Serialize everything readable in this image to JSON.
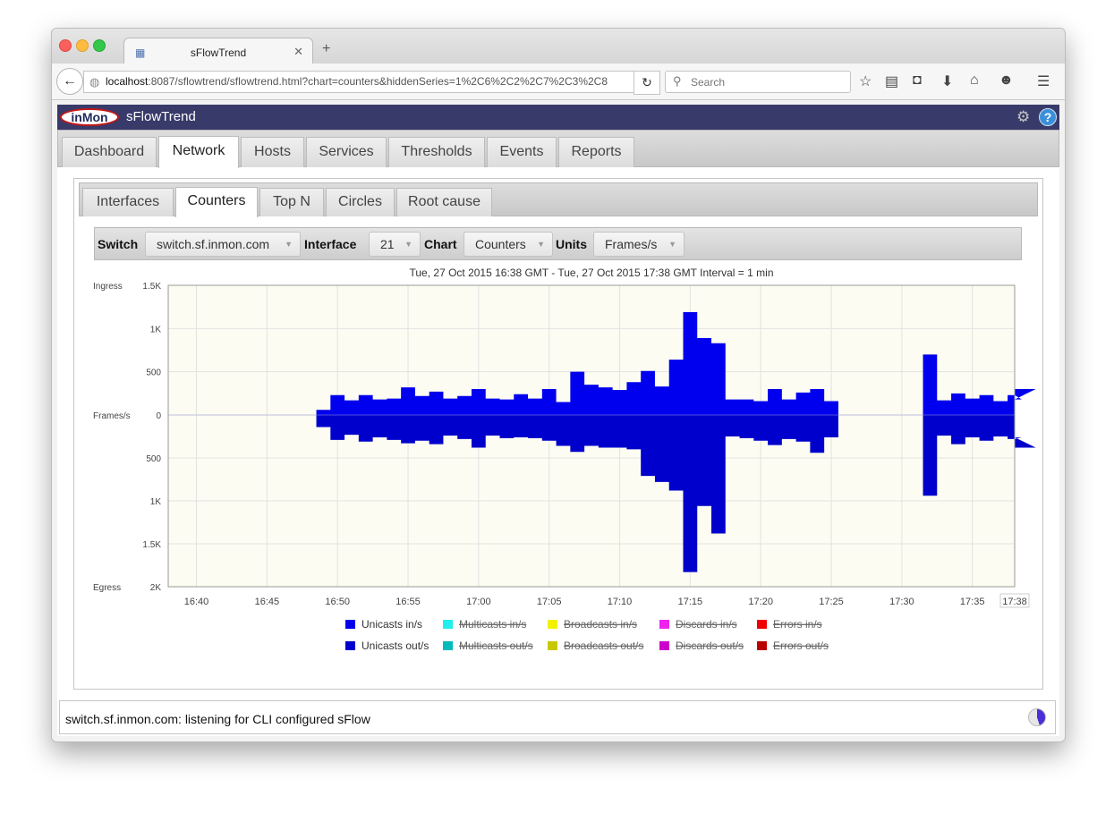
{
  "browser": {
    "tab_title": "sFlowTrend",
    "url_host": "localhost",
    "url_rest": ":8087/sflowtrend/sflowtrend.html?chart=counters&hiddenSeries=1%2C6%2C2%2C7%2C3%2C8",
    "search_placeholder": "Search"
  },
  "app": {
    "logo_text": "inMon",
    "title": "sFlowTrend"
  },
  "main_tabs": [
    "Dashboard",
    "Network",
    "Hosts",
    "Services",
    "Thresholds",
    "Events",
    "Reports"
  ],
  "main_tab_active": "Network",
  "sub_tabs": [
    "Interfaces",
    "Counters",
    "Top N",
    "Circles",
    "Root cause"
  ],
  "sub_tab_active": "Counters",
  "controls": {
    "switch_label": "Switch",
    "switch_value": "switch.sf.inmon.com",
    "interface_label": "Interface",
    "interface_value": "21",
    "chart_label": "Chart",
    "chart_value": "Counters",
    "units_label": "Units",
    "units_value": "Frames/s"
  },
  "chart_data": {
    "type": "area",
    "title": "Tue, 27 Oct 2015 16:38 GMT - Tue, 27 Oct 2015 17:38 GMT Interval = 1 min",
    "ylabel": "Frames/s",
    "ylabel_top": "Ingress",
    "ylabel_bottom": "Egress",
    "ylim_in": [
      0,
      1500
    ],
    "ylim_out": [
      0,
      2000
    ],
    "y_ticks_in": [
      {
        "v": 1500,
        "label": "1.5K"
      },
      {
        "v": 1000,
        "label": "1K"
      },
      {
        "v": 500,
        "label": "500"
      },
      {
        "v": 0,
        "label": "0"
      }
    ],
    "y_ticks_out": [
      {
        "v": 500,
        "label": "500"
      },
      {
        "v": 1000,
        "label": "1K"
      },
      {
        "v": 1500,
        "label": "1.5K"
      },
      {
        "v": 2000,
        "label": "2K"
      }
    ],
    "x_ticks": [
      "16:40",
      "16:45",
      "16:50",
      "16:55",
      "17:00",
      "17:05",
      "17:10",
      "17:15",
      "17:20",
      "17:25",
      "17:30",
      "17:35",
      "17:38"
    ],
    "x_tick_minutes": [
      2,
      7,
      12,
      17,
      22,
      27,
      32,
      37,
      42,
      47,
      52,
      57,
      60
    ],
    "x_start": "16:38",
    "series": [
      {
        "name": "Unicasts in/s",
        "color": "#0000ee",
        "visible": true,
        "values": [
          null,
          null,
          null,
          null,
          null,
          null,
          null,
          null,
          null,
          null,
          null,
          60,
          230,
          170,
          230,
          180,
          190,
          320,
          220,
          270,
          190,
          220,
          300,
          190,
          180,
          240,
          190,
          300,
          150,
          500,
          350,
          320,
          290,
          380,
          510,
          330,
          640,
          1190,
          890,
          830,
          180,
          180,
          160,
          300,
          180,
          260,
          300,
          160,
          null,
          null,
          null,
          null,
          null,
          null,
          700,
          170,
          250,
          190,
          230,
          160,
          230,
          180,
          300
        ]
      },
      {
        "name": "Unicasts out/s",
        "color": "#0000cc",
        "visible": true,
        "values": [
          null,
          null,
          null,
          null,
          null,
          null,
          null,
          null,
          null,
          null,
          null,
          140,
          290,
          230,
          310,
          260,
          290,
          330,
          300,
          340,
          240,
          280,
          380,
          240,
          270,
          260,
          270,
          300,
          360,
          430,
          360,
          380,
          380,
          400,
          710,
          780,
          880,
          1830,
          1060,
          1380,
          250,
          270,
          300,
          350,
          280,
          310,
          440,
          260,
          null,
          null,
          null,
          null,
          null,
          null,
          940,
          240,
          340,
          260,
          300,
          250,
          280,
          260,
          380
        ]
      },
      {
        "name": "Multicasts in/s",
        "color": "#22eeee",
        "visible": false
      },
      {
        "name": "Broadcasts in/s",
        "color": "#f2f200",
        "visible": false
      },
      {
        "name": "Discards in/s",
        "color": "#ee22ee",
        "visible": false
      },
      {
        "name": "Errors in/s",
        "color": "#ee0000",
        "visible": false
      },
      {
        "name": "Multicasts out/s",
        "color": "#00bbbb",
        "visible": false
      },
      {
        "name": "Broadcasts out/s",
        "color": "#c8c800",
        "visible": false
      },
      {
        "name": "Discards out/s",
        "color": "#cc00cc",
        "visible": false
      },
      {
        "name": "Errors out/s",
        "color": "#bb0000",
        "visible": false
      }
    ],
    "legend_row1": [
      "Unicasts in/s",
      "Multicasts in/s",
      "Broadcasts in/s",
      "Discards in/s",
      "Errors in/s"
    ],
    "legend_row2": [
      "Unicasts out/s",
      "Multicasts out/s",
      "Broadcasts out/s",
      "Discards out/s",
      "Errors out/s"
    ],
    "legend_placement": "bottom",
    "grid": true
  },
  "status": {
    "text": "switch.sf.inmon.com: listening for CLI configured sFlow"
  }
}
